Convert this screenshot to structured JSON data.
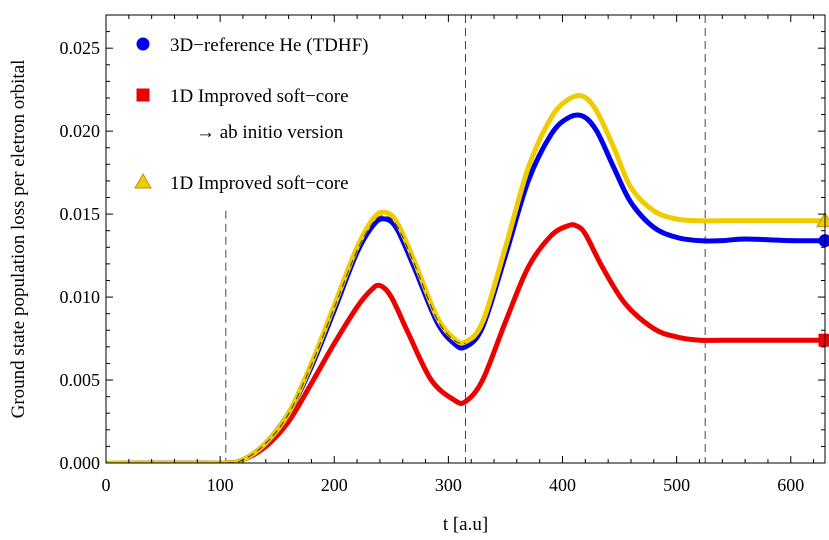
{
  "chart_data": {
    "type": "line",
    "xlabel": "t  [a.u]",
    "ylabel": "Ground  state  population   loss  per  eletron  orbital",
    "xlim": [
      0,
      630
    ],
    "ylim": [
      0,
      0.027
    ],
    "xticks": [
      0,
      100,
      200,
      300,
      400,
      500,
      600
    ],
    "yticks": [
      0.0,
      0.005,
      0.01,
      0.015,
      0.02,
      0.025
    ],
    "ytick_labels": [
      "0.000",
      "0.005",
      "0.010",
      "0.015",
      "0.020",
      "0.025"
    ],
    "vertical_lines": [
      105,
      315,
      525
    ],
    "grid": false,
    "legend_position": "top-left",
    "series": [
      {
        "name": "3D−reference He (TDHF)",
        "color": "#0000ee",
        "marker": "circle",
        "x": [
          0,
          100,
          120,
          140,
          160,
          180,
          200,
          220,
          235,
          245,
          255,
          270,
          290,
          305,
          315,
          330,
          350,
          370,
          390,
          405,
          418,
          430,
          445,
          460,
          480,
          500,
          520,
          540,
          560,
          600,
          630
        ],
        "y": [
          0,
          0,
          0.0002,
          0.0012,
          0.003,
          0.0058,
          0.0092,
          0.0127,
          0.0144,
          0.0147,
          0.0141,
          0.0118,
          0.0085,
          0.0072,
          0.007,
          0.0082,
          0.0125,
          0.017,
          0.0198,
          0.0208,
          0.0209,
          0.02,
          0.0178,
          0.0157,
          0.0142,
          0.0136,
          0.0134,
          0.0134,
          0.0135,
          0.0134,
          0.0134
        ]
      },
      {
        "name": "1D Improved soft−core\n→ ab initio version",
        "color": "#ee0000",
        "marker": "square",
        "x": [
          0,
          100,
          120,
          140,
          160,
          180,
          200,
          220,
          232,
          240,
          250,
          265,
          285,
          305,
          315,
          330,
          350,
          370,
          390,
          405,
          412,
          420,
          435,
          455,
          480,
          500,
          520,
          540,
          580,
          630
        ],
        "y": [
          0,
          0,
          0.0002,
          0.001,
          0.0025,
          0.0048,
          0.0072,
          0.0094,
          0.0104,
          0.0107,
          0.01,
          0.0078,
          0.005,
          0.0038,
          0.0037,
          0.005,
          0.0085,
          0.0118,
          0.0137,
          0.0143,
          0.0143,
          0.0138,
          0.0118,
          0.0096,
          0.0081,
          0.0076,
          0.0074,
          0.0074,
          0.0074,
          0.0074
        ]
      },
      {
        "name": "1D Improved soft−core",
        "color": "#eecc00",
        "marker": "triangle",
        "x": [
          0,
          100,
          120,
          140,
          160,
          180,
          200,
          220,
          235,
          245,
          255,
          270,
          290,
          305,
          315,
          330,
          350,
          370,
          390,
          405,
          418,
          430,
          445,
          460,
          480,
          500,
          520,
          540,
          560,
          600,
          630
        ],
        "y": [
          0,
          0,
          0.0002,
          0.0012,
          0.003,
          0.006,
          0.0095,
          0.013,
          0.0148,
          0.0151,
          0.0145,
          0.0122,
          0.0088,
          0.0075,
          0.0073,
          0.0085,
          0.013,
          0.0178,
          0.0208,
          0.0219,
          0.0221,
          0.0212,
          0.019,
          0.0166,
          0.0152,
          0.0147,
          0.0146,
          0.0146,
          0.0146,
          0.0146,
          0.0146
        ]
      }
    ]
  }
}
